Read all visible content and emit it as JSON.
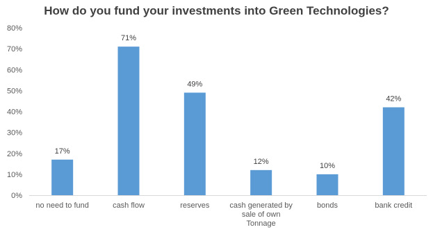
{
  "chart_data": {
    "type": "bar",
    "title": "How do you fund your investments into Green Technologies?",
    "categories": [
      [
        "no need to fund"
      ],
      [
        "cash flow"
      ],
      [
        "reserves"
      ],
      [
        "cash generated by",
        "sale of own",
        "Tonnage"
      ],
      [
        "bonds"
      ],
      [
        "bank credit"
      ]
    ],
    "values": [
      17,
      71,
      49,
      12,
      10,
      42
    ],
    "data_labels": [
      "17%",
      "71%",
      "49%",
      "12%",
      "10%",
      "42%"
    ],
    "y_ticks": [
      "0%",
      "10%",
      "20%",
      "30%",
      "40%",
      "50%",
      "60%",
      "70%",
      "80%"
    ],
    "ylim": [
      0,
      80
    ],
    "grid": false,
    "bar_color": "#5B9BD5",
    "axis_color": "#D9D9D9"
  }
}
